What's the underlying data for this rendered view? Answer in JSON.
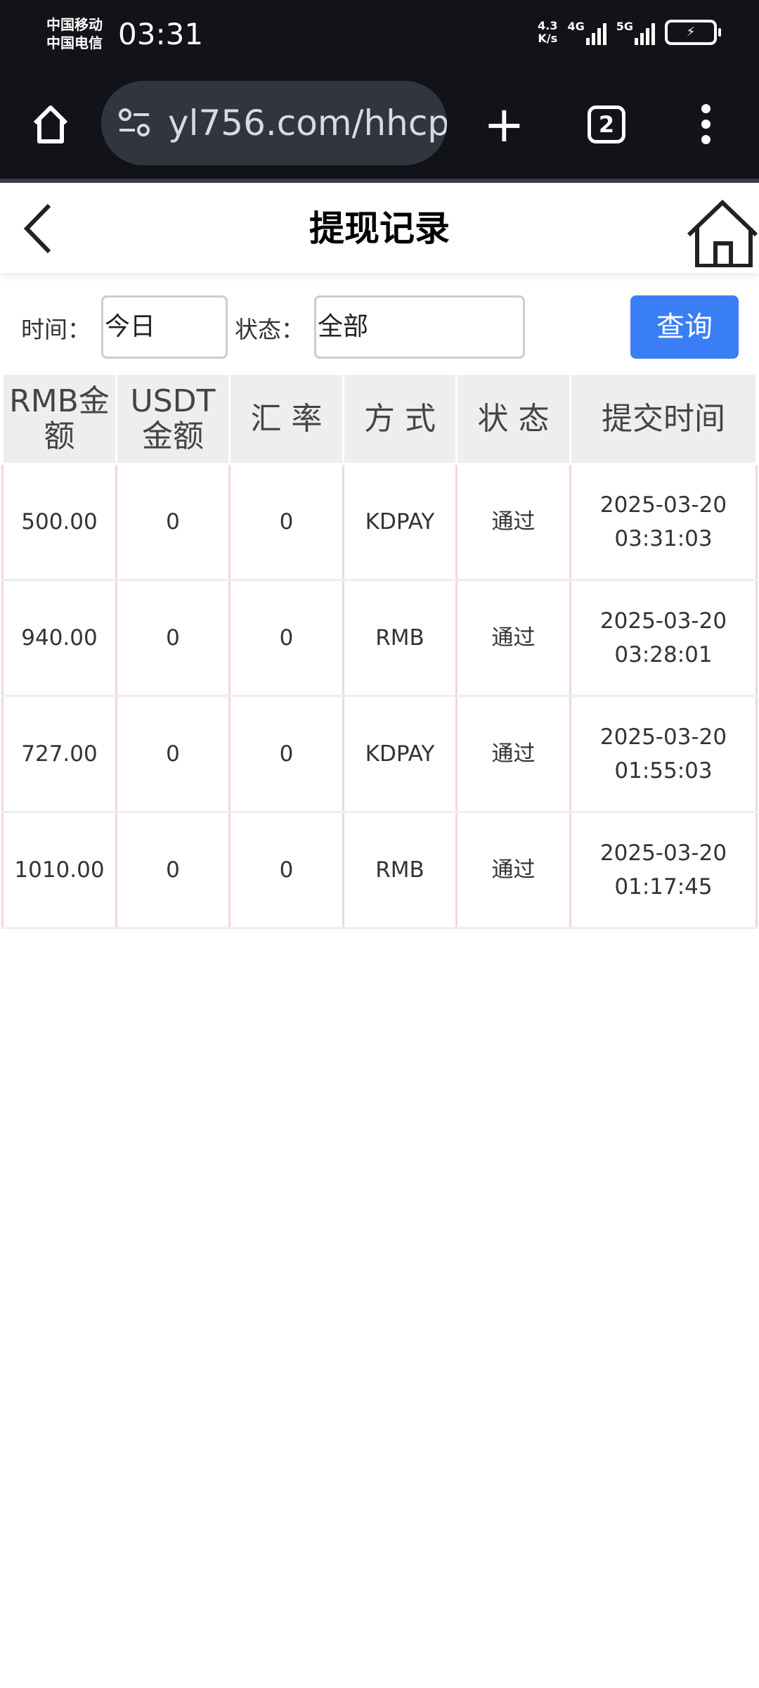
{
  "status_bar": {
    "carrier1": "中国移动",
    "carrier2": "中国电信",
    "time": "03:31",
    "speed": "4.3",
    "speed_unit": "K/s",
    "net1": "4G",
    "net2": "5G"
  },
  "browser": {
    "url": "yl756.com/hhcpı",
    "tab_count": "2"
  },
  "header": {
    "title": "提现记录"
  },
  "filters": {
    "time_label": "时间：",
    "time_value": "今日",
    "status_label": "状态：",
    "status_value": "全部",
    "query_label": "查询"
  },
  "accent": "#3a7ef5",
  "table": {
    "headers": [
      "RMB金额",
      "USDT金额",
      "汇 率",
      "方 式",
      "状 态",
      "提交时间"
    ],
    "rows": [
      {
        "rmb": "500.00",
        "usdt": "0",
        "rate": "0",
        "method": "KDPAY",
        "status": "通过",
        "date": "2025-03-20",
        "time": "03:31:03"
      },
      {
        "rmb": "940.00",
        "usdt": "0",
        "rate": "0",
        "method": "RMB",
        "status": "通过",
        "date": "2025-03-20",
        "time": "03:28:01"
      },
      {
        "rmb": "727.00",
        "usdt": "0",
        "rate": "0",
        "method": "KDPAY",
        "status": "通过",
        "date": "2025-03-20",
        "time": "01:55:03"
      },
      {
        "rmb": "1010.00",
        "usdt": "0",
        "rate": "0",
        "method": "RMB",
        "status": "通过",
        "date": "2025-03-20",
        "time": "01:17:45"
      }
    ]
  }
}
